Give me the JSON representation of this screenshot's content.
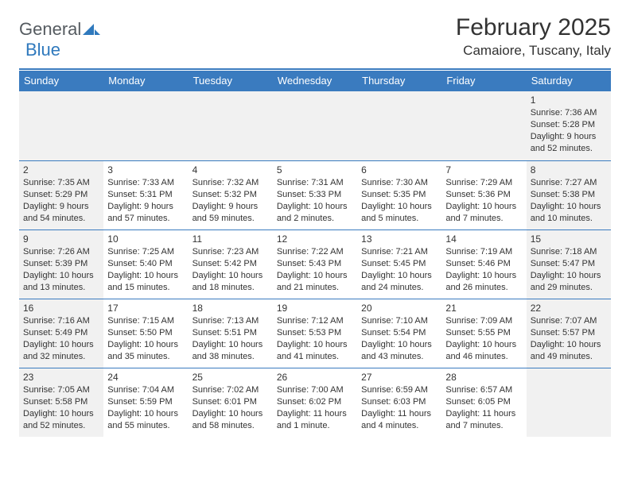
{
  "logo": {
    "word1": "General",
    "word2": "Blue",
    "word1_color": "#555b60",
    "word2_color": "#2f79bd"
  },
  "title": "February 2025",
  "location": "Camaiore, Tuscany, Italy",
  "colors": {
    "header_bar": "#3a7bbf",
    "shade": "#f1f1f1",
    "text": "#333333",
    "bg": "#ffffff"
  },
  "dow": [
    "Sunday",
    "Monday",
    "Tuesday",
    "Wednesday",
    "Thursday",
    "Friday",
    "Saturday"
  ],
  "cells": [
    {
      "empty": true
    },
    {
      "empty": true
    },
    {
      "empty": true
    },
    {
      "empty": true
    },
    {
      "empty": true
    },
    {
      "empty": true
    },
    {
      "day": "1",
      "shaded": true,
      "sunrise": "Sunrise: 7:36 AM",
      "sunset": "Sunset: 5:28 PM",
      "daylight1": "Daylight: 9 hours",
      "daylight2": "and 52 minutes."
    },
    {
      "day": "2",
      "shaded": true,
      "sunrise": "Sunrise: 7:35 AM",
      "sunset": "Sunset: 5:29 PM",
      "daylight1": "Daylight: 9 hours",
      "daylight2": "and 54 minutes."
    },
    {
      "day": "3",
      "sunrise": "Sunrise: 7:33 AM",
      "sunset": "Sunset: 5:31 PM",
      "daylight1": "Daylight: 9 hours",
      "daylight2": "and 57 minutes."
    },
    {
      "day": "4",
      "sunrise": "Sunrise: 7:32 AM",
      "sunset": "Sunset: 5:32 PM",
      "daylight1": "Daylight: 9 hours",
      "daylight2": "and 59 minutes."
    },
    {
      "day": "5",
      "sunrise": "Sunrise: 7:31 AM",
      "sunset": "Sunset: 5:33 PM",
      "daylight1": "Daylight: 10 hours",
      "daylight2": "and 2 minutes."
    },
    {
      "day": "6",
      "sunrise": "Sunrise: 7:30 AM",
      "sunset": "Sunset: 5:35 PM",
      "daylight1": "Daylight: 10 hours",
      "daylight2": "and 5 minutes."
    },
    {
      "day": "7",
      "sunrise": "Sunrise: 7:29 AM",
      "sunset": "Sunset: 5:36 PM",
      "daylight1": "Daylight: 10 hours",
      "daylight2": "and 7 minutes."
    },
    {
      "day": "8",
      "shaded": true,
      "sunrise": "Sunrise: 7:27 AM",
      "sunset": "Sunset: 5:38 PM",
      "daylight1": "Daylight: 10 hours",
      "daylight2": "and 10 minutes."
    },
    {
      "day": "9",
      "shaded": true,
      "sunrise": "Sunrise: 7:26 AM",
      "sunset": "Sunset: 5:39 PM",
      "daylight1": "Daylight: 10 hours",
      "daylight2": "and 13 minutes."
    },
    {
      "day": "10",
      "sunrise": "Sunrise: 7:25 AM",
      "sunset": "Sunset: 5:40 PM",
      "daylight1": "Daylight: 10 hours",
      "daylight2": "and 15 minutes."
    },
    {
      "day": "11",
      "sunrise": "Sunrise: 7:23 AM",
      "sunset": "Sunset: 5:42 PM",
      "daylight1": "Daylight: 10 hours",
      "daylight2": "and 18 minutes."
    },
    {
      "day": "12",
      "sunrise": "Sunrise: 7:22 AM",
      "sunset": "Sunset: 5:43 PM",
      "daylight1": "Daylight: 10 hours",
      "daylight2": "and 21 minutes."
    },
    {
      "day": "13",
      "sunrise": "Sunrise: 7:21 AM",
      "sunset": "Sunset: 5:45 PM",
      "daylight1": "Daylight: 10 hours",
      "daylight2": "and 24 minutes."
    },
    {
      "day": "14",
      "sunrise": "Sunrise: 7:19 AM",
      "sunset": "Sunset: 5:46 PM",
      "daylight1": "Daylight: 10 hours",
      "daylight2": "and 26 minutes."
    },
    {
      "day": "15",
      "shaded": true,
      "sunrise": "Sunrise: 7:18 AM",
      "sunset": "Sunset: 5:47 PM",
      "daylight1": "Daylight: 10 hours",
      "daylight2": "and 29 minutes."
    },
    {
      "day": "16",
      "shaded": true,
      "sunrise": "Sunrise: 7:16 AM",
      "sunset": "Sunset: 5:49 PM",
      "daylight1": "Daylight: 10 hours",
      "daylight2": "and 32 minutes."
    },
    {
      "day": "17",
      "sunrise": "Sunrise: 7:15 AM",
      "sunset": "Sunset: 5:50 PM",
      "daylight1": "Daylight: 10 hours",
      "daylight2": "and 35 minutes."
    },
    {
      "day": "18",
      "sunrise": "Sunrise: 7:13 AM",
      "sunset": "Sunset: 5:51 PM",
      "daylight1": "Daylight: 10 hours",
      "daylight2": "and 38 minutes."
    },
    {
      "day": "19",
      "sunrise": "Sunrise: 7:12 AM",
      "sunset": "Sunset: 5:53 PM",
      "daylight1": "Daylight: 10 hours",
      "daylight2": "and 41 minutes."
    },
    {
      "day": "20",
      "sunrise": "Sunrise: 7:10 AM",
      "sunset": "Sunset: 5:54 PM",
      "daylight1": "Daylight: 10 hours",
      "daylight2": "and 43 minutes."
    },
    {
      "day": "21",
      "sunrise": "Sunrise: 7:09 AM",
      "sunset": "Sunset: 5:55 PM",
      "daylight1": "Daylight: 10 hours",
      "daylight2": "and 46 minutes."
    },
    {
      "day": "22",
      "shaded": true,
      "sunrise": "Sunrise: 7:07 AM",
      "sunset": "Sunset: 5:57 PM",
      "daylight1": "Daylight: 10 hours",
      "daylight2": "and 49 minutes."
    },
    {
      "day": "23",
      "shaded": true,
      "sunrise": "Sunrise: 7:05 AM",
      "sunset": "Sunset: 5:58 PM",
      "daylight1": "Daylight: 10 hours",
      "daylight2": "and 52 minutes."
    },
    {
      "day": "24",
      "sunrise": "Sunrise: 7:04 AM",
      "sunset": "Sunset: 5:59 PM",
      "daylight1": "Daylight: 10 hours",
      "daylight2": "and 55 minutes."
    },
    {
      "day": "25",
      "sunrise": "Sunrise: 7:02 AM",
      "sunset": "Sunset: 6:01 PM",
      "daylight1": "Daylight: 10 hours",
      "daylight2": "and 58 minutes."
    },
    {
      "day": "26",
      "sunrise": "Sunrise: 7:00 AM",
      "sunset": "Sunset: 6:02 PM",
      "daylight1": "Daylight: 11 hours",
      "daylight2": "and 1 minute."
    },
    {
      "day": "27",
      "sunrise": "Sunrise: 6:59 AM",
      "sunset": "Sunset: 6:03 PM",
      "daylight1": "Daylight: 11 hours",
      "daylight2": "and 4 minutes."
    },
    {
      "day": "28",
      "sunrise": "Sunrise: 6:57 AM",
      "sunset": "Sunset: 6:05 PM",
      "daylight1": "Daylight: 11 hours",
      "daylight2": "and 7 minutes."
    },
    {
      "empty": true,
      "noborder": false
    }
  ]
}
